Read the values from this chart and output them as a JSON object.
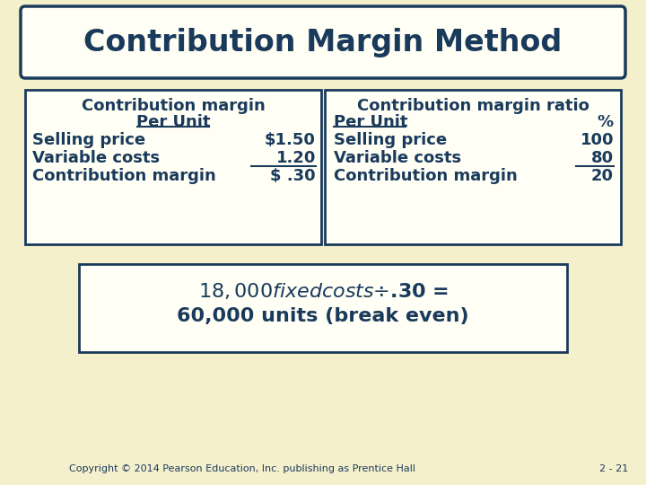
{
  "bg_color": "#f5f0cc",
  "title": "Contribution Margin Method",
  "box_color": "#fffff5",
  "border_color": "#1a3a5c",
  "text_color": "#1a3a5c",
  "left_header1": "Contribution margin",
  "left_header2": "Per Unit",
  "left_rows": [
    {
      "label": "Selling price",
      "value": "$1.50",
      "underline": false
    },
    {
      "label": "Variable costs",
      "value": "1.20",
      "underline": true
    },
    {
      "label": "Contribution margin",
      "value": "$ .30",
      "underline": false
    }
  ],
  "right_header1": "Contribution margin ratio",
  "right_header2_left": "Per Unit",
  "right_header2_right": "%",
  "right_rows": [
    {
      "label": "Selling price",
      "value": "100",
      "underline": false
    },
    {
      "label": "Variable costs",
      "value": "80",
      "underline": true
    },
    {
      "label": "Contribution margin",
      "value": "20",
      "underline": false
    }
  ],
  "bottom_line1": "$18,000 fixed costs ÷ $.30 =",
  "bottom_line2": "60,000 units (break even)",
  "copyright": "Copyright © 2014 Pearson Education, Inc. publishing as Prentice Hall",
  "page_num": "2 - 21"
}
